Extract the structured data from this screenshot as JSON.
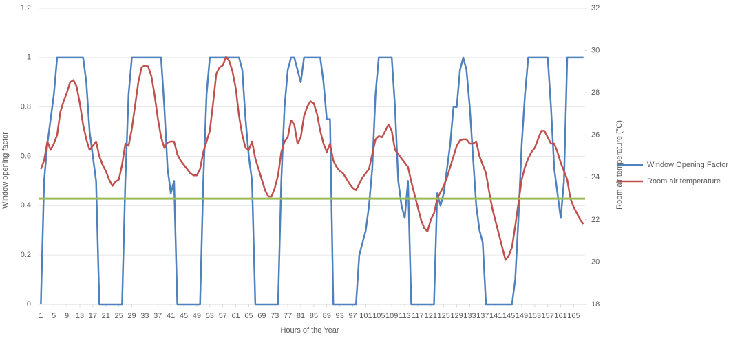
{
  "chart_data": {
    "type": "line",
    "xlabel": "Hours of the Year",
    "ylabel": "Window opening factor",
    "y2label": "Room air temperature (°C)",
    "x": [
      1,
      2,
      3,
      4,
      5,
      6,
      7,
      8,
      9,
      10,
      11,
      12,
      13,
      14,
      15,
      16,
      17,
      18,
      19,
      20,
      21,
      22,
      23,
      24,
      25,
      26,
      27,
      28,
      29,
      30,
      31,
      32,
      33,
      34,
      35,
      36,
      37,
      38,
      39,
      40,
      41,
      42,
      43,
      44,
      45,
      46,
      47,
      48,
      49,
      50,
      51,
      52,
      53,
      54,
      55,
      56,
      57,
      58,
      59,
      60,
      61,
      62,
      63,
      64,
      65,
      66,
      67,
      68,
      69,
      70,
      71,
      72,
      73,
      74,
      75,
      76,
      77,
      78,
      79,
      80,
      81,
      82,
      83,
      84,
      85,
      86,
      87,
      88,
      89,
      90,
      91,
      92,
      93,
      94,
      95,
      96,
      97,
      98,
      99,
      100,
      101,
      102,
      103,
      104,
      105,
      106,
      107,
      108,
      109,
      110,
      111,
      112,
      113,
      114,
      115,
      116,
      117,
      118,
      119,
      120,
      121,
      122,
      123,
      124,
      125,
      126,
      127,
      128,
      129,
      130,
      131,
      132,
      133,
      134,
      135,
      136,
      137,
      138,
      139,
      140,
      141,
      142,
      143,
      144,
      145,
      146,
      147,
      148,
      149,
      150,
      151,
      152,
      153,
      154,
      155,
      156,
      157,
      158,
      159,
      160,
      161,
      162,
      163,
      164,
      165,
      166,
      167,
      168
    ],
    "xlim": [
      0.5,
      168.5
    ],
    "xticks": [
      1,
      5,
      9,
      13,
      17,
      21,
      25,
      29,
      33,
      37,
      41,
      45,
      49,
      53,
      57,
      61,
      65,
      69,
      73,
      77,
      81,
      85,
      89,
      93,
      97,
      101,
      105,
      109,
      113,
      117,
      121,
      125,
      129,
      133,
      137,
      141,
      145,
      149,
      153,
      157,
      161,
      165
    ],
    "ylim": [
      0,
      1.2
    ],
    "yticks": [
      0,
      0.2,
      0.4,
      0.6,
      0.8,
      1,
      1.2
    ],
    "y2lim": [
      18,
      32
    ],
    "y2ticks": [
      18,
      20,
      22,
      24,
      26,
      28,
      30,
      32
    ],
    "grid": true,
    "legend": "right",
    "threshold": {
      "value": 23,
      "axis": "y2",
      "color": "#9bbb59"
    },
    "series": [
      {
        "name": "Window Opening Factor",
        "color": "#4f81bd",
        "axis": "y",
        "values": [
          0,
          0.5,
          0.65,
          0.75,
          0.85,
          1,
          1,
          1,
          1,
          1,
          1,
          1,
          1,
          1,
          0.9,
          0.7,
          0.6,
          0.5,
          0,
          0,
          0,
          0,
          0,
          0,
          0,
          0,
          0.5,
          0.85,
          1,
          1,
          1,
          1,
          1,
          1,
          1,
          1,
          1,
          1,
          0.8,
          0.55,
          0.45,
          0.5,
          0,
          0,
          0,
          0,
          0,
          0,
          0,
          0,
          0.5,
          0.85,
          1,
          1,
          1,
          1,
          1,
          1,
          1,
          1,
          1,
          1,
          0.95,
          0.75,
          0.6,
          0.5,
          0,
          0,
          0,
          0,
          0,
          0,
          0,
          0,
          0.5,
          0.8,
          0.95,
          1,
          1,
          0.95,
          0.9,
          1,
          1,
          1,
          1,
          1,
          1,
          0.9,
          0.75,
          0.75,
          0,
          0,
          0,
          0,
          0,
          0,
          0,
          0,
          0.2,
          0.25,
          0.3,
          0.4,
          0.55,
          0.85,
          1,
          1,
          1,
          1,
          1,
          0.8,
          0.5,
          0.4,
          0.35,
          0.5,
          0,
          0,
          0,
          0,
          0,
          0,
          0,
          0,
          0.45,
          0.4,
          0.45,
          0.55,
          0.65,
          0.8,
          0.8,
          0.95,
          1,
          0.95,
          0.8,
          0.6,
          0.4,
          0.3,
          0.25,
          0,
          0,
          0,
          0,
          0,
          0,
          0,
          0,
          0,
          0.1,
          0.35,
          0.65,
          0.85,
          1,
          1,
          1,
          1,
          1,
          1,
          1,
          0.8,
          0.55,
          0.45,
          0.35,
          0.5,
          1,
          1,
          1,
          1,
          1,
          1
        ]
      },
      {
        "name": "Room air temperature",
        "color": "#c0504d",
        "axis": "y2",
        "values": [
          24.4,
          24.8,
          25.7,
          25.3,
          25.6,
          26.0,
          27.1,
          27.6,
          28.0,
          28.5,
          28.6,
          28.3,
          27.5,
          26.5,
          25.8,
          25.3,
          25.5,
          25.7,
          25.0,
          24.6,
          24.3,
          23.9,
          23.6,
          23.8,
          23.9,
          24.6,
          25.6,
          25.5,
          26.3,
          27.4,
          28.5,
          29.2,
          29.3,
          29.25,
          28.8,
          27.9,
          26.8,
          25.9,
          25.4,
          25.65,
          25.7,
          25.7,
          25.1,
          24.8,
          24.6,
          24.4,
          24.2,
          24.1,
          24.1,
          24.4,
          25.2,
          25.7,
          26.2,
          27.5,
          28.9,
          29.2,
          29.3,
          29.7,
          29.5,
          29.0,
          28.2,
          26.9,
          26.0,
          25.4,
          25.3,
          25.7,
          24.9,
          24.4,
          23.9,
          23.4,
          23.1,
          23.1,
          23.5,
          24.1,
          25.2,
          25.7,
          25.9,
          26.7,
          26.5,
          25.6,
          25.9,
          26.9,
          27.35,
          27.6,
          27.5,
          27.0,
          26.2,
          25.6,
          25.2,
          25.6,
          24.8,
          24.5,
          24.3,
          24.2,
          23.95,
          23.7,
          23.5,
          23.4,
          23.7,
          24.0,
          24.2,
          24.4,
          25.1,
          25.8,
          25.95,
          25.9,
          26.2,
          26.5,
          26.2,
          25.3,
          25.1,
          24.9,
          24.7,
          24.5,
          23.8,
          23.2,
          22.6,
          22.0,
          21.6,
          21.45,
          22.0,
          22.3,
          23.0,
          23.3,
          23.6,
          24.0,
          24.5,
          25.0,
          25.5,
          25.75,
          25.8,
          25.8,
          25.6,
          25.6,
          25.7,
          25.0,
          24.6,
          24.2,
          23.3,
          22.5,
          21.9,
          21.3,
          20.7,
          20.1,
          20.3,
          20.7,
          21.7,
          22.8,
          23.9,
          24.5,
          24.9,
          25.2,
          25.4,
          25.8,
          26.2,
          26.2,
          25.9,
          25.6,
          25.6,
          25.2,
          24.7,
          24.3,
          23.9,
          23.0,
          22.6,
          22.3,
          22.0,
          21.8
        ]
      }
    ]
  }
}
